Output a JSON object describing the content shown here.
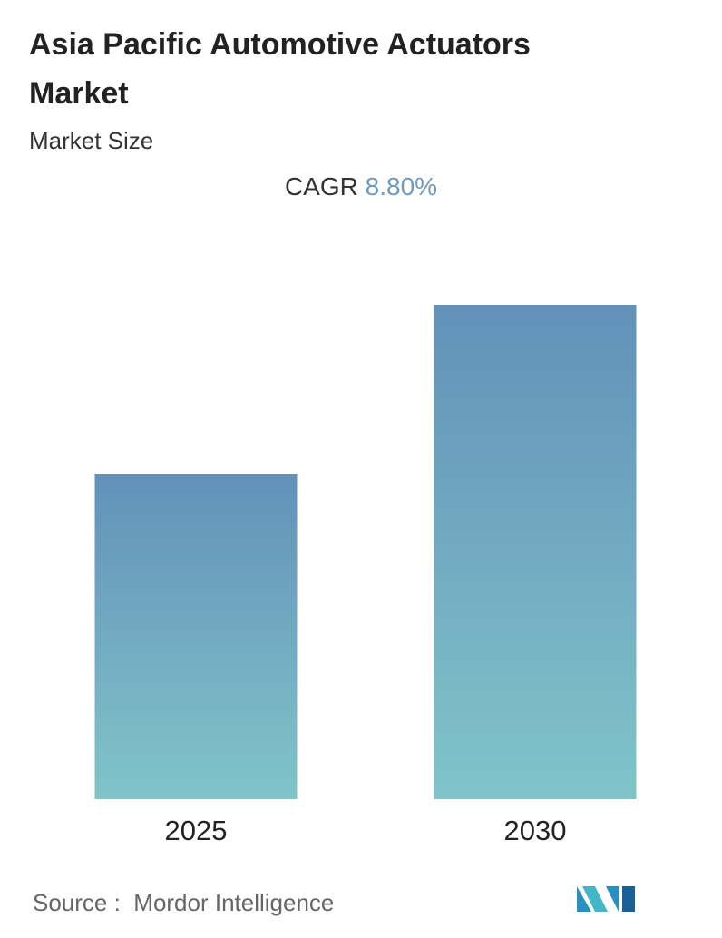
{
  "chart_data": {
    "type": "bar",
    "title": "Asia Pacific Automotive Actuators Market",
    "subtitle": "Market Size",
    "cagr_label": "CAGR",
    "cagr_value": "8.80%",
    "categories": [
      "2025",
      "2030"
    ],
    "values": [
      358,
      545
    ],
    "ylim": [
      0,
      600
    ],
    "colors": [
      "#6391b9",
      "#80c4c9"
    ],
    "source_label": "Source :",
    "source": "Mordor Intelligence"
  }
}
